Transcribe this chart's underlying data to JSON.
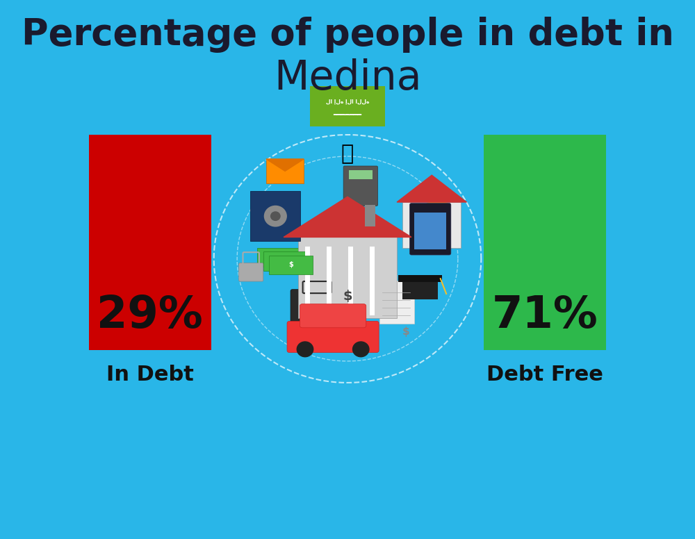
{
  "background_color": "#29B6E8",
  "title_line1": "Percentage of people in debt in",
  "title_line2": "Medina",
  "title_color": "#1a1a2e",
  "title_fontsize1": 38,
  "title_fontsize2": 42,
  "bar_left_label": "29%",
  "bar_left_color": "#CC0000",
  "bar_left_caption": "In Debt",
  "bar_right_label": "71%",
  "bar_right_color": "#2DB84B",
  "bar_right_caption": "Debt Free",
  "label_fontsize": 46,
  "caption_fontsize": 22,
  "label_color": "#111111",
  "caption_color": "#111111",
  "flag_color": "#6AAF20"
}
